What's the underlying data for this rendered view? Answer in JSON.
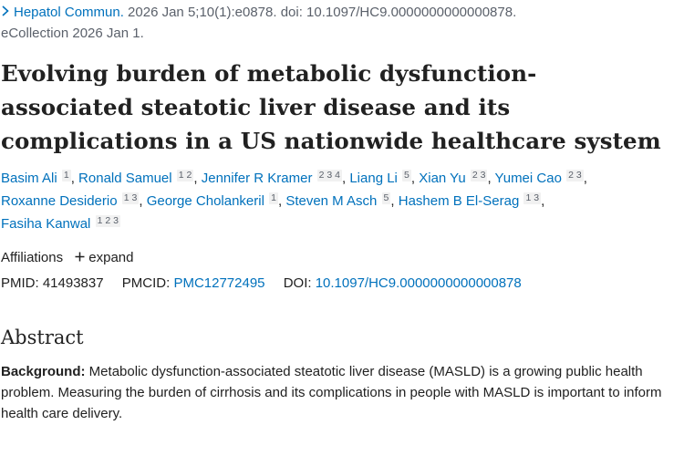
{
  "citation": {
    "journal": "Hepatol Commun.",
    "details": " 2026 Jan 5;10(1):e0878. doi: 10.1097/HC9.0000000000000878.",
    "ecollection": "eCollection 2026 Jan 1."
  },
  "title_line1": "Evolving burden of metabolic dysfunction-",
  "title_line2": "associated steatotic liver disease and its",
  "title_line3": "complications in a US nationwide healthcare system",
  "authors": [
    {
      "name": "Basim Ali",
      "affs": "1"
    },
    {
      "name": "Ronald Samuel",
      "affs": "1 2"
    },
    {
      "name": "Jennifer R Kramer",
      "affs": "2 3 4"
    },
    {
      "name": "Liang Li",
      "affs": "5"
    },
    {
      "name": "Xian Yu",
      "affs": "2 3"
    },
    {
      "name": "Yumei Cao",
      "affs": "2 3"
    },
    {
      "name": "Roxanne Desiderio",
      "affs": "1 3"
    },
    {
      "name": "George Cholankeril",
      "affs": "1"
    },
    {
      "name": "Steven M Asch",
      "affs": "5"
    },
    {
      "name": "Hashem B El-Serag",
      "affs": "1 3"
    },
    {
      "name": "Fasiha Kanwal",
      "affs": "1 2 3"
    }
  ],
  "affiliations": {
    "label": "Affiliations",
    "toggle": "expand",
    "toggle_icon": "plus-icon"
  },
  "ids": {
    "pmid_label": "PMID:",
    "pmid": "41493837",
    "pmcid_label": "PMCID:",
    "pmcid": "PMC12772495",
    "doi_label": "DOI:",
    "doi": "10.1097/HC9.0000000000000878"
  },
  "abstract": {
    "heading": "Abstract",
    "background_label": "Background:",
    "background_text": " Metabolic dysfunction-associated steatotic liver disease (MASLD) is a growing public health problem. Measuring the burden of cirrhosis and its complications in people with MASLD is important to inform health care delivery."
  },
  "colors": {
    "link": "#0071bc",
    "text": "#212121",
    "muted": "#5b616b"
  }
}
